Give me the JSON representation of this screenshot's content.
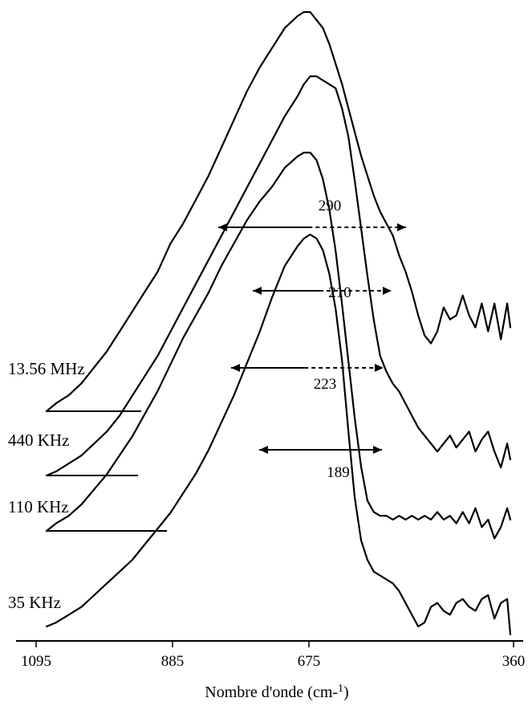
{
  "chart_data": {
    "type": "line",
    "title": "",
    "xlabel": "Nombre d'onde (cm-1)",
    "ylabel": "",
    "x_reversed": true,
    "xlim": [
      1095,
      360
    ],
    "x_ticks": [
      1095,
      885,
      675,
      360
    ],
    "grid": false,
    "legend": "labels at left of each curve",
    "series": [
      {
        "name": "13.56 MHz",
        "x": [
          1095,
          1080,
          1060,
          1040,
          1020,
          1000,
          980,
          960,
          940,
          920,
          900,
          880,
          860,
          840,
          820,
          800,
          780,
          760,
          740,
          720,
          700,
          690,
          680,
          670,
          660,
          650,
          640,
          630,
          620,
          610,
          600,
          590,
          580,
          570,
          560,
          550,
          540,
          530,
          520,
          510,
          500,
          490,
          480,
          470,
          460,
          450,
          440,
          430,
          420,
          410,
          400,
          390,
          380,
          370,
          365
        ],
        "y": [
          0.0,
          0.02,
          0.04,
          0.07,
          0.11,
          0.15,
          0.2,
          0.25,
          0.3,
          0.35,
          0.42,
          0.47,
          0.53,
          0.59,
          0.66,
          0.73,
          0.8,
          0.86,
          0.91,
          0.96,
          0.99,
          1.0,
          1.0,
          0.98,
          0.96,
          0.92,
          0.87,
          0.82,
          0.76,
          0.7,
          0.64,
          0.59,
          0.54,
          0.5,
          0.47,
          0.44,
          0.39,
          0.35,
          0.3,
          0.24,
          0.19,
          0.17,
          0.2,
          0.26,
          0.23,
          0.24,
          0.29,
          0.24,
          0.21,
          0.27,
          0.2,
          0.27,
          0.18,
          0.27,
          0.21
        ],
        "fwhm": 290
      },
      {
        "name": "440 KHz",
        "x": [
          1095,
          1080,
          1060,
          1040,
          1020,
          1000,
          980,
          960,
          940,
          920,
          900,
          880,
          860,
          840,
          820,
          800,
          780,
          760,
          740,
          720,
          700,
          690,
          680,
          670,
          660,
          650,
          640,
          630,
          620,
          610,
          600,
          590,
          580,
          570,
          560,
          550,
          540,
          530,
          520,
          510,
          500,
          490,
          480,
          470,
          460,
          450,
          440,
          430,
          420,
          410,
          400,
          390,
          380,
          370,
          365
        ],
        "y": [
          0.0,
          0.01,
          0.03,
          0.05,
          0.08,
          0.11,
          0.15,
          0.2,
          0.25,
          0.3,
          0.36,
          0.42,
          0.48,
          0.54,
          0.6,
          0.66,
          0.72,
          0.78,
          0.84,
          0.9,
          0.95,
          0.98,
          1.0,
          1.0,
          0.99,
          0.98,
          0.97,
          0.92,
          0.85,
          0.74,
          0.62,
          0.5,
          0.39,
          0.3,
          0.26,
          0.23,
          0.21,
          0.18,
          0.15,
          0.12,
          0.1,
          0.08,
          0.06,
          0.08,
          0.1,
          0.07,
          0.09,
          0.11,
          0.06,
          0.09,
          0.11,
          0.06,
          0.02,
          0.08,
          0.04
        ],
        "fwhm": 210
      },
      {
        "name": "110 KHz",
        "x": [
          1095,
          1080,
          1060,
          1040,
          1020,
          1000,
          980,
          960,
          940,
          920,
          900,
          880,
          860,
          840,
          820,
          800,
          780,
          760,
          740,
          720,
          700,
          690,
          680,
          670,
          660,
          650,
          640,
          630,
          620,
          610,
          600,
          590,
          580,
          570,
          560,
          550,
          540,
          530,
          520,
          510,
          500,
          490,
          480,
          470,
          460,
          450,
          440,
          430,
          420,
          410,
          400,
          390,
          380,
          370,
          365
        ],
        "y": [
          0.0,
          0.02,
          0.04,
          0.07,
          0.11,
          0.15,
          0.2,
          0.25,
          0.31,
          0.37,
          0.44,
          0.51,
          0.57,
          0.63,
          0.7,
          0.76,
          0.82,
          0.87,
          0.91,
          0.96,
          0.99,
          1.0,
          1.0,
          0.98,
          0.93,
          0.85,
          0.74,
          0.6,
          0.45,
          0.3,
          0.17,
          0.08,
          0.05,
          0.04,
          0.04,
          0.03,
          0.04,
          0.03,
          0.04,
          0.03,
          0.04,
          0.03,
          0.05,
          0.03,
          0.04,
          0.02,
          0.05,
          0.02,
          0.06,
          0.01,
          0.03,
          -0.02,
          0.01,
          0.06,
          0.03
        ],
        "fwhm": 223
      },
      {
        "name": "35 KHz",
        "x": [
          1095,
          1080,
          1060,
          1040,
          1020,
          1000,
          980,
          960,
          940,
          920,
          900,
          880,
          860,
          840,
          820,
          800,
          780,
          760,
          740,
          720,
          700,
          690,
          680,
          670,
          660,
          650,
          640,
          630,
          620,
          610,
          600,
          590,
          580,
          570,
          560,
          550,
          540,
          530,
          520,
          510,
          500,
          490,
          480,
          470,
          460,
          450,
          440,
          430,
          420,
          410,
          400,
          390,
          380,
          370,
          365
        ],
        "y": [
          0.0,
          0.01,
          0.03,
          0.05,
          0.08,
          0.11,
          0.14,
          0.17,
          0.21,
          0.25,
          0.29,
          0.34,
          0.39,
          0.45,
          0.52,
          0.59,
          0.67,
          0.75,
          0.84,
          0.92,
          0.97,
          0.99,
          1.0,
          0.99,
          0.96,
          0.9,
          0.81,
          0.68,
          0.5,
          0.33,
          0.22,
          0.17,
          0.14,
          0.13,
          0.12,
          0.11,
          0.09,
          0.06,
          0.03,
          0.0,
          0.01,
          0.05,
          0.06,
          0.04,
          0.03,
          0.06,
          0.07,
          0.05,
          0.04,
          0.07,
          0.08,
          0.02,
          0.06,
          0.07,
          -0.02
        ],
        "fwhm": 189
      }
    ]
  }
}
